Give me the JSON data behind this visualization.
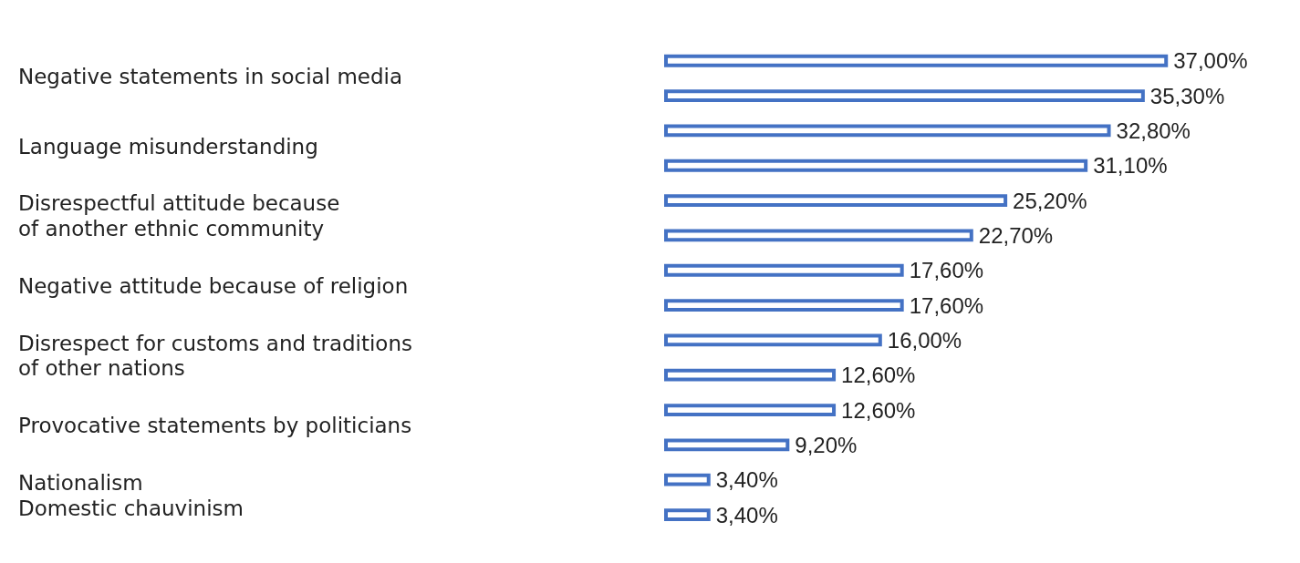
{
  "chart_data": {
    "type": "bar",
    "orientation": "horizontal",
    "categories": [
      "Negative statements in social media",
      "Language misunderstanding",
      "Disrespectful attitude because\nof another ethnic community",
      "Negative attitude because of religion",
      "Disrespect for customs and traditions\nof other nations",
      "Provocative statements by politicians",
      "Nationalism\nDomestic chauvinism"
    ],
    "series": [
      {
        "color": "#4472c4",
        "values": [
          37.0,
          32.8,
          25.2,
          17.6,
          16.0,
          12.6,
          3.4
        ],
        "value_labels": [
          "37,00%",
          "32,80%",
          "25,20%",
          "17,60%",
          "16,00%",
          "12,60%",
          "3,40%"
        ]
      },
      {
        "color": "#4472c4",
        "values": [
          35.3,
          31.1,
          22.7,
          17.6,
          12.6,
          9.2,
          3.4
        ],
        "value_labels": [
          "35,30%",
          "31,10%",
          "22,70%",
          "17,60%",
          "12,60%",
          "9,20%",
          "3,40%"
        ]
      }
    ],
    "grid": false,
    "tick_labels": "y"
  }
}
